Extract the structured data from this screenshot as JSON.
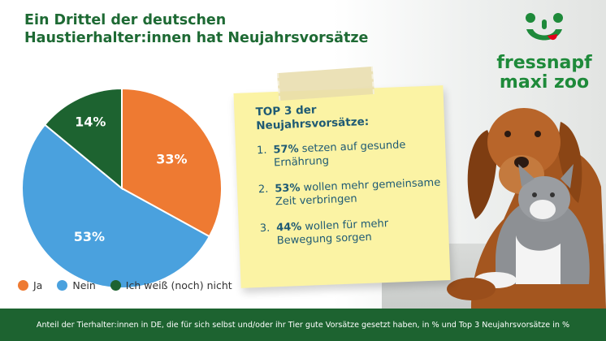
{
  "title": {
    "line1": "Ein Drittel der deutschen",
    "line2": "Haustierhalter:innen hat Neujahrsvorsätze"
  },
  "chart_data": {
    "type": "pie",
    "start_angle_deg": 0,
    "slices": [
      {
        "label": "Ja",
        "value": 33,
        "display": "33%",
        "color": "#ee7a32"
      },
      {
        "label": "Nein",
        "value": 53,
        "display": "53%",
        "color": "#4aa1de"
      },
      {
        "label": "Ich weiß (noch) nicht",
        "value": 14,
        "display": "14%",
        "color": "#1d6330"
      }
    ],
    "legend_position": "bottom-left"
  },
  "legend": [
    {
      "label": "Ja",
      "color": "#ee7a32"
    },
    {
      "label": "Nein",
      "color": "#4aa1de"
    },
    {
      "label": "Ich weiß (noch) nicht",
      "color": "#1d6330"
    }
  ],
  "note": {
    "title_line1": "TOP 3 der",
    "title_line2": "Neujahrsvorsätze:",
    "items": [
      {
        "num": "1.",
        "pct": "57%",
        "text": " setzen auf gesunde Ernährung"
      },
      {
        "num": "2.",
        "pct": "53%",
        "text": " wollen mehr gemeinsame Zeit verbringen"
      },
      {
        "num": "3.",
        "pct": "44%",
        "text": " wollen für mehr Bewegung sorgen"
      }
    ]
  },
  "logo": {
    "line1": "fressnapf",
    "line2": "maxi zoo",
    "color": "#1e8a3a",
    "accent": "#e2001a"
  },
  "footer": {
    "text": "Anteil der Tierhalter:innen in DE, die für sich selbst und/oder ihr Tier gute Vorsätze gesetzt haben, in % und Top 3 Neujahrsvorsätze in %"
  }
}
